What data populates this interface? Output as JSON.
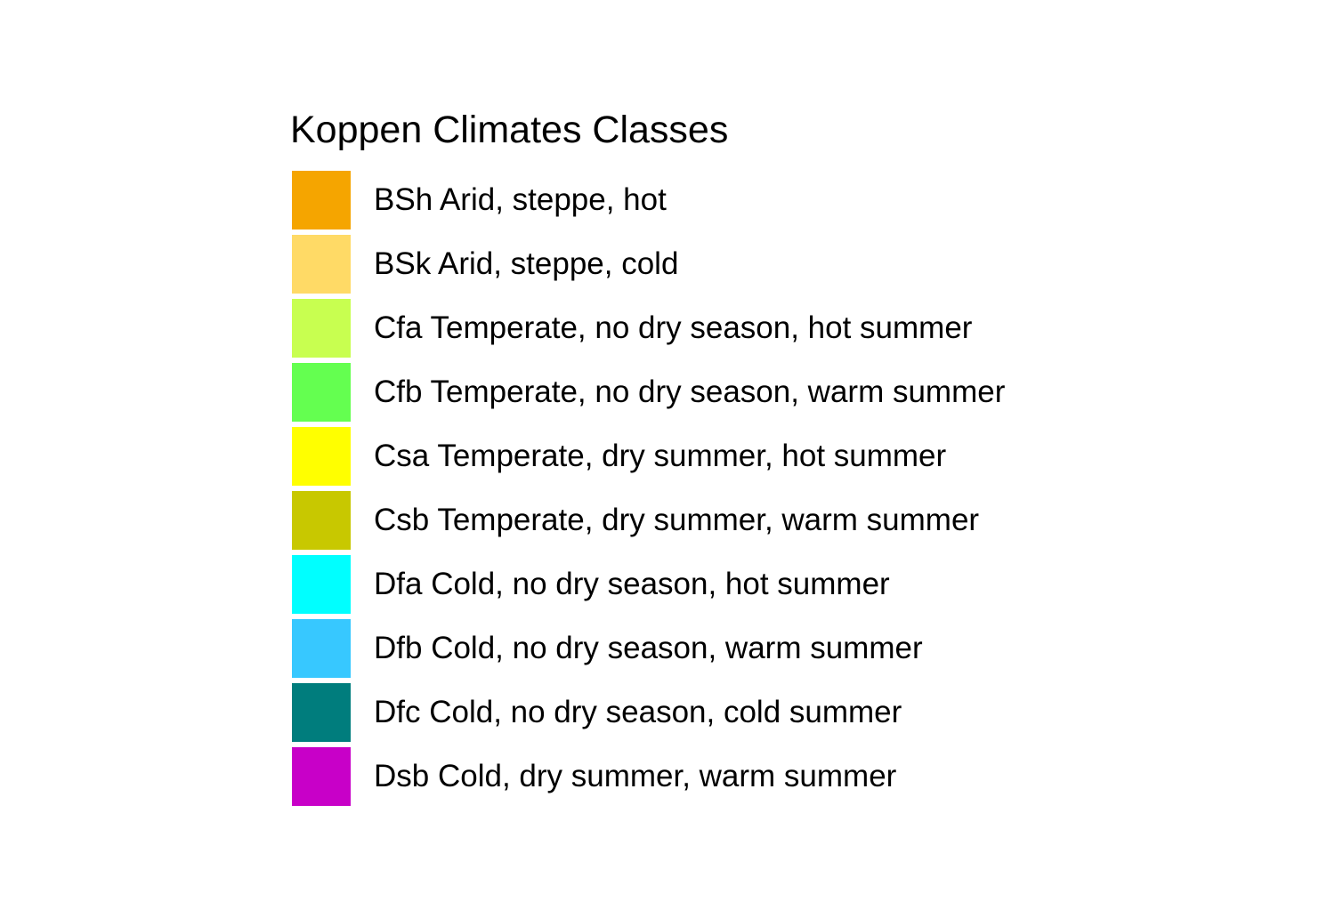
{
  "legend": {
    "title": "Koppen Climates Classes",
    "items": [
      {
        "label": "BSh Arid, steppe, hot",
        "color": "#F5A500"
      },
      {
        "label": "BSk Arid, steppe, cold",
        "color": "#FFDA66"
      },
      {
        "label": "Cfa Temperate, no dry season, hot summer",
        "color": "#C8FF50"
      },
      {
        "label": "Cfb Temperate, no dry season, warm summer",
        "color": "#64FF50"
      },
      {
        "label": "Csa Temperate, dry summer, hot summer",
        "color": "#FFFF00"
      },
      {
        "label": "Csb Temperate, dry summer, warm summer",
        "color": "#C8C800"
      },
      {
        "label": "Dfa Cold, no dry season, hot summer",
        "color": "#00FFFF"
      },
      {
        "label": "Dfb Cold, no dry season, warm summer",
        "color": "#37C8FF"
      },
      {
        "label": "Dfc Cold, no dry season, cold summer",
        "color": "#007D7D"
      },
      {
        "label": "Dsb Cold, dry summer, warm summer",
        "color": "#C800C8"
      }
    ]
  }
}
